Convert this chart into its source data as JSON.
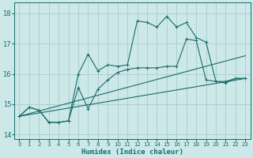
{
  "xlabel": "Humidex (Indice chaleur)",
  "bg_color": "#cce8e8",
  "grid_color": "#aacccc",
  "line_color": "#1a6b6b",
  "xlim": [
    -0.5,
    23.5
  ],
  "ylim": [
    13.85,
    18.35
  ],
  "yticks": [
    14,
    15,
    16,
    17,
    18
  ],
  "xticks": [
    0,
    1,
    2,
    3,
    4,
    5,
    6,
    7,
    8,
    9,
    10,
    11,
    12,
    13,
    14,
    15,
    16,
    17,
    18,
    19,
    20,
    21,
    22,
    23
  ],
  "line1_x": [
    0,
    1,
    2,
    3,
    4,
    5,
    6,
    7,
    8,
    9,
    10,
    11,
    12,
    13,
    14,
    15,
    16,
    17,
    18,
    19,
    20,
    21,
    22,
    23
  ],
  "line1_y": [
    14.6,
    14.9,
    14.8,
    14.4,
    14.4,
    14.45,
    16.0,
    16.65,
    16.1,
    16.3,
    16.25,
    16.3,
    17.75,
    17.7,
    17.55,
    17.9,
    17.55,
    17.7,
    17.2,
    17.05,
    15.75,
    15.75,
    15.85,
    15.85
  ],
  "line2_x": [
    0,
    1,
    2,
    3,
    4,
    5,
    6,
    7,
    8,
    9,
    10,
    11,
    12,
    13,
    14,
    15,
    16,
    17,
    18,
    19,
    20,
    21,
    22,
    23
  ],
  "line2_y": [
    14.6,
    14.9,
    14.8,
    14.4,
    14.4,
    14.45,
    15.55,
    14.85,
    15.5,
    15.8,
    16.05,
    16.15,
    16.2,
    16.2,
    16.2,
    16.25,
    16.25,
    17.15,
    17.1,
    15.8,
    15.75,
    15.7,
    15.85,
    15.85
  ],
  "line3_x": [
    0,
    23
  ],
  "line3_y": [
    14.6,
    15.85
  ],
  "line4_x": [
    0,
    23
  ],
  "line4_y": [
    14.6,
    16.6
  ]
}
